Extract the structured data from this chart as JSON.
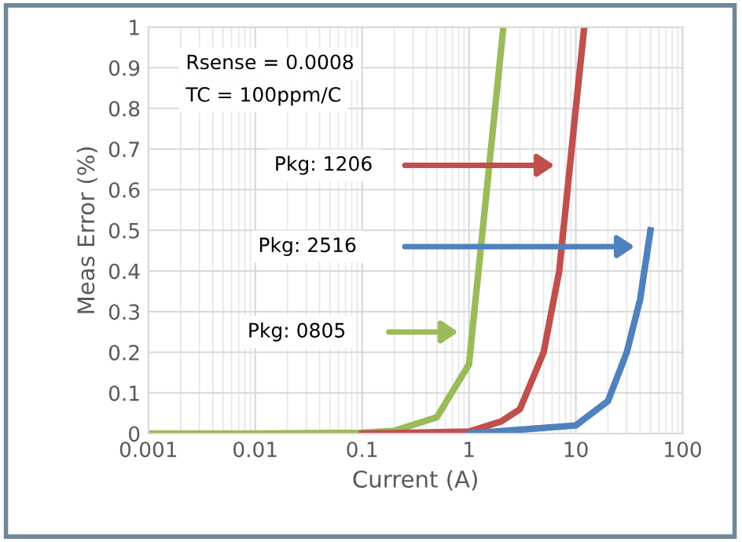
{
  "chart_data": {
    "type": "line",
    "xlabel": "Current (A)",
    "ylabel": "Meas Error (%)",
    "log": "x",
    "xlim": [
      0.001,
      100
    ],
    "xticks": [
      0.001,
      0.01,
      0.1,
      1,
      10,
      100
    ],
    "ylim": [
      0,
      1
    ],
    "yticks": [
      0,
      0.1,
      0.2,
      0.3,
      0.4,
      0.5,
      0.6,
      0.7,
      0.8,
      0.9,
      1
    ],
    "grid": true,
    "marker": "none",
    "line_style": "solid",
    "series": [
      {
        "color": "#9bbb59",
        "x": [
          0.001,
          0.01,
          0.1,
          0.2,
          0.5,
          1,
          2.1
        ],
        "values": [
          0,
          0,
          0.002,
          0.007,
          0.04,
          0.17,
          1.0
        ]
      },
      {
        "color": "#c0504d",
        "x": [
          0.1,
          1,
          2,
          3,
          5,
          7,
          10,
          12
        ],
        "values": [
          0,
          0.005,
          0.03,
          0.06,
          0.2,
          0.4,
          0.8,
          1.0
        ]
      },
      {
        "color": "#4f81bd",
        "x": [
          1,
          10,
          20,
          30,
          40,
          50
        ],
        "values": [
          0,
          0.02,
          0.08,
          0.2,
          0.33,
          0.5
        ]
      }
    ],
    "annotations": [
      "Rsense = 0.0008",
      "TC = 100ppm/C",
      "Pkg: 0805",
      "Pkg: 1206",
      "Pkg: 2516"
    ]
  }
}
